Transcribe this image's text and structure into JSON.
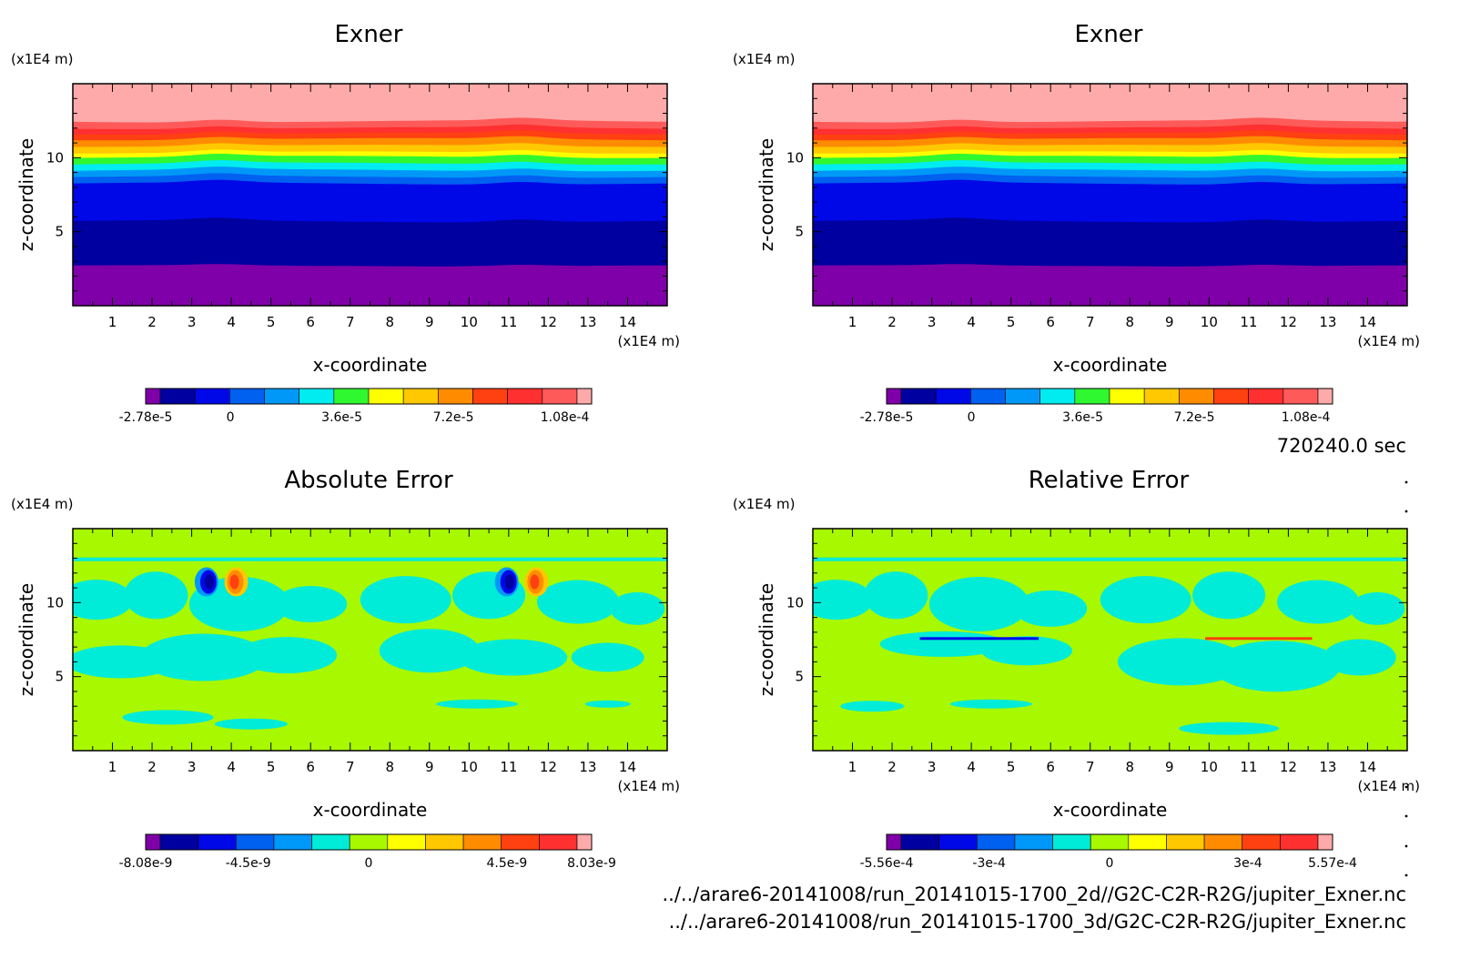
{
  "colors": {
    "exner_levels": [
      "#7f00a8",
      "#0000a0",
      "#0008e8",
      "#0060f0",
      "#0098f8",
      "#00ecf0",
      "#30f830",
      "#ffff00",
      "#ffc800",
      "#ff8c00",
      "#ff4010",
      "#ff3030",
      "#ff5a5a",
      "#ffaaaa"
    ],
    "error_levels": [
      "#7f00a8",
      "#0000a0",
      "#0008e8",
      "#0060f0",
      "#0098f8",
      "#00ecd8",
      "#a8f800",
      "#ffff00",
      "#ffc800",
      "#ff8c00",
      "#ff4010",
      "#ff3030",
      "#ffaaaa"
    ]
  },
  "time_stamp": "720240.0 sec",
  "footer_lines": [
    "../../arare6-20141008/run_20141015-1700_2d//G2C-C2R-R2G/jupiter_Exner.nc",
    "../../arare6-20141008/run_20141015-1700_3d/G2C-C2R-R2G/jupiter_Exner.nc"
  ],
  "chart_data": [
    {
      "type": "heatmap",
      "title": "Exner",
      "xlabel": "x-coordinate",
      "ylabel": "z-coordinate",
      "x_unit": "(x1E4 m)",
      "y_unit": "(x1E4 m)",
      "x_ticks": [
        1,
        2,
        3,
        4,
        5,
        6,
        7,
        8,
        9,
        10,
        11,
        12,
        13,
        14
      ],
      "y_ticks": [
        5,
        10
      ],
      "xlim": [
        0,
        15
      ],
      "ylim": [
        0,
        15
      ],
      "colorbar_labels": [
        "-2.78e-5",
        "0",
        "3.6e-5",
        "7.2e-5",
        "1.08e-4"
      ]
    },
    {
      "type": "heatmap",
      "title": "Exner",
      "xlabel": "x-coordinate",
      "ylabel": "z-coordinate",
      "x_unit": "(x1E4 m)",
      "y_unit": "(x1E4 m)",
      "x_ticks": [
        1,
        2,
        3,
        4,
        5,
        6,
        7,
        8,
        9,
        10,
        11,
        12,
        13,
        14
      ],
      "y_ticks": [
        5,
        10
      ],
      "xlim": [
        0,
        15
      ],
      "ylim": [
        0,
        15
      ],
      "colorbar_labels": [
        "-2.78e-5",
        "0",
        "3.6e-5",
        "7.2e-5",
        "1.08e-4"
      ]
    },
    {
      "type": "heatmap",
      "title": "Absolute Error",
      "xlabel": "x-coordinate",
      "ylabel": "z-coordinate",
      "x_unit": "(x1E4 m)",
      "y_unit": "(x1E4 m)",
      "x_ticks": [
        1,
        2,
        3,
        4,
        5,
        6,
        7,
        8,
        9,
        10,
        11,
        12,
        13,
        14
      ],
      "y_ticks": [
        5,
        10
      ],
      "xlim": [
        0,
        15
      ],
      "ylim": [
        0,
        15
      ],
      "colorbar_labels": [
        "-8.08e-9",
        "-4.5e-9",
        "0",
        "4.5e-9",
        "8.03e-9"
      ]
    },
    {
      "type": "heatmap",
      "title": "Relative Error",
      "xlabel": "x-coordinate",
      "ylabel": "z-coordinate",
      "x_unit": "(x1E4 m)",
      "y_unit": "(x1E4 m)",
      "x_ticks": [
        1,
        2,
        3,
        4,
        5,
        6,
        7,
        8,
        9,
        10,
        11,
        12,
        13,
        14
      ],
      "y_ticks": [
        5,
        10
      ],
      "xlim": [
        0,
        15
      ],
      "ylim": [
        0,
        15
      ],
      "colorbar_labels": [
        "-5.56e-4",
        "-3e-4",
        "0",
        "3e-4",
        "5.57e-4"
      ]
    }
  ]
}
